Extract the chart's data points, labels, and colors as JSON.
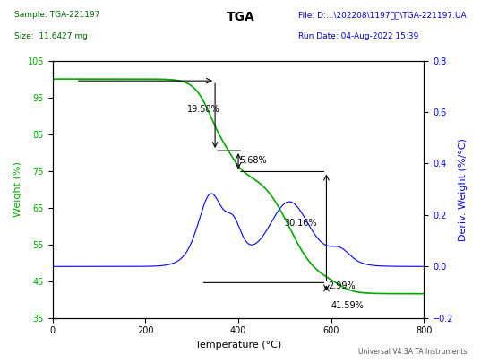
{
  "title": "TGA",
  "sample_label": "Sample: TGA-221197",
  "size_label": "Size:  11.6427 mg",
  "file_label": "File: D:...\\202208\\1197安件\\TGA-221197.UA",
  "date_label": "Run Date: 04-Aug-2022 15:39",
  "footer_label": "Universal V4.3A TA Instruments",
  "xlabel": "Temperature (°C)",
  "ylabel_left": "Weight (%)",
  "ylabel_right": "Deriv. Weight (%/°C)",
  "xlim": [
    0,
    800
  ],
  "ylim_left": [
    35,
    105
  ],
  "ylim_right": [
    -0.2,
    0.8
  ],
  "green_color": "#00AA00",
  "blue_color": "#0000FF",
  "black_color": "#000000",
  "annotation_19_58": "19.58%",
  "annotation_5_68": "5.68%",
  "annotation_30_16": "30.16%",
  "annotation_2_99": "2.99%",
  "annotation_41_59": "41.59%",
  "background_color": "#FFFFFF",
  "grid_color": "#CCCCCC"
}
